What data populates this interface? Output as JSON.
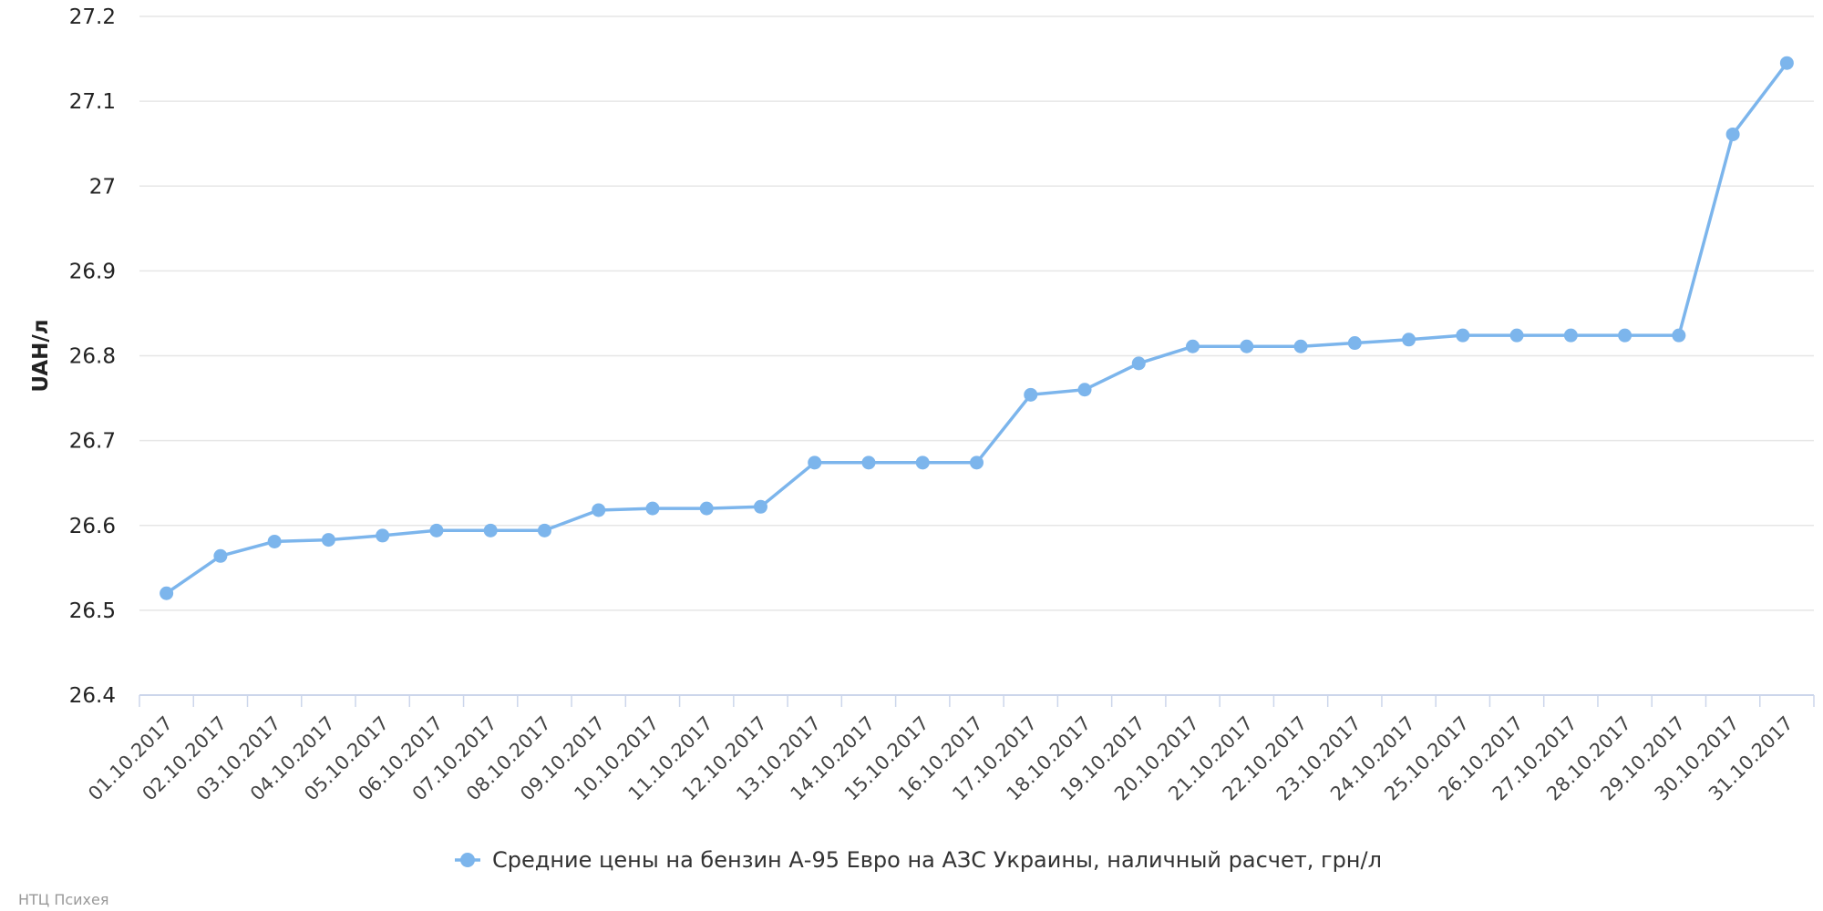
{
  "chart_data": {
    "type": "line",
    "title": "",
    "xlabel": "",
    "ylabel": "UAH/л",
    "ylim": [
      26.4,
      27.2
    ],
    "yticks": [
      "26.4",
      "26.5",
      "26.6",
      "26.7",
      "26.8",
      "26.9",
      "27",
      "27.1",
      "27.2"
    ],
    "grid": true,
    "legend_position": "bottom-center",
    "categories": [
      "01.10.2017",
      "02.10.2017",
      "03.10.2017",
      "04.10.2017",
      "05.10.2017",
      "06.10.2017",
      "07.10.2017",
      "08.10.2017",
      "09.10.2017",
      "10.10.2017",
      "11.10.2017",
      "12.10.2017",
      "13.10.2017",
      "14.10.2017",
      "15.10.2017",
      "16.10.2017",
      "17.10.2017",
      "18.10.2017",
      "19.10.2017",
      "20.10.2017",
      "21.10.2017",
      "22.10.2017",
      "23.10.2017",
      "24.10.2017",
      "25.10.2017",
      "26.10.2017",
      "27.10.2017",
      "28.10.2017",
      "29.10.2017",
      "30.10.2017",
      "31.10.2017"
    ],
    "series": [
      {
        "name": "Средние цены на бензин А-95 Евро на АЗС Украины, наличный расчет, грн/л",
        "color": "#7cb5ec",
        "values": [
          26.52,
          26.564,
          26.581,
          26.583,
          26.588,
          26.594,
          26.594,
          26.594,
          26.618,
          26.62,
          26.62,
          26.622,
          26.674,
          26.674,
          26.674,
          26.674,
          26.754,
          26.76,
          26.791,
          26.811,
          26.811,
          26.811,
          26.815,
          26.819,
          26.824,
          26.824,
          26.824,
          26.824,
          26.824,
          27.061,
          27.145
        ]
      }
    ]
  },
  "credits": "НТЦ Психея",
  "colors": {
    "grid": "#e6e6e6",
    "axis": "#ccd6eb"
  }
}
